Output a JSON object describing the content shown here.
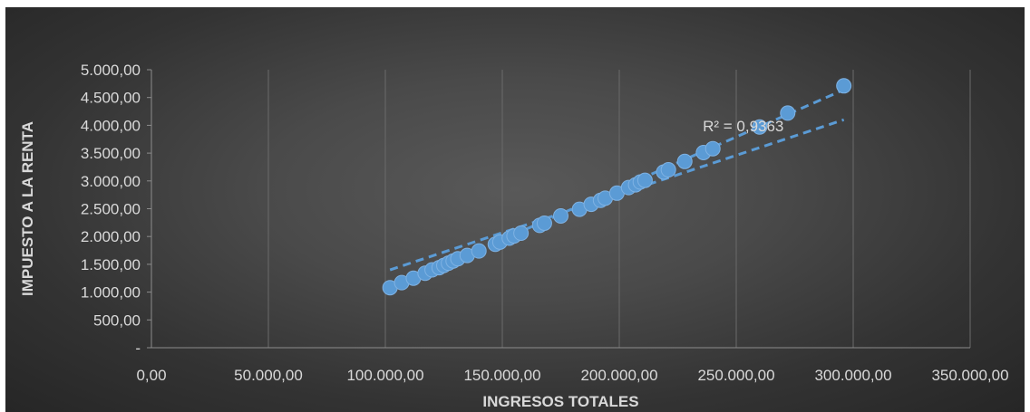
{
  "chart_data": {
    "type": "scatter",
    "title": "",
    "xlabel": "INGRESOS TOTALES",
    "ylabel": "IMPUESTO A LA RENTA",
    "xlim": [
      0,
      350000
    ],
    "ylim": [
      0,
      5000
    ],
    "x_ticks": [
      0,
      50000,
      100000,
      150000,
      200000,
      250000,
      300000,
      350000
    ],
    "x_tick_labels": [
      "0,00",
      "50.000,00",
      "100.000,00",
      "150.000,00",
      "200.000,00",
      "250.000,00",
      "300.000,00",
      "350.000,00"
    ],
    "y_ticks": [
      0,
      500,
      1000,
      1500,
      2000,
      2500,
      3000,
      3500,
      4000,
      4500,
      5000
    ],
    "y_tick_labels": [
      "-",
      "500,00",
      "1.000,00",
      "1.500,00",
      "2.000,00",
      "2.500,00",
      "3.000,00",
      "3.500,00",
      "4.000,00",
      "4.500,00",
      "5.000,00"
    ],
    "grid": "vertical",
    "marker_color": "#5b9bd5",
    "trendline_color": "#5b9bd5",
    "points": [
      {
        "x": 102000,
        "y": 1080
      },
      {
        "x": 107000,
        "y": 1170
      },
      {
        "x": 112000,
        "y": 1250
      },
      {
        "x": 117000,
        "y": 1340
      },
      {
        "x": 120000,
        "y": 1400
      },
      {
        "x": 123000,
        "y": 1440
      },
      {
        "x": 125000,
        "y": 1480
      },
      {
        "x": 127000,
        "y": 1520
      },
      {
        "x": 129000,
        "y": 1560
      },
      {
        "x": 131000,
        "y": 1600
      },
      {
        "x": 135000,
        "y": 1660
      },
      {
        "x": 140000,
        "y": 1740
      },
      {
        "x": 147000,
        "y": 1860
      },
      {
        "x": 149000,
        "y": 1900
      },
      {
        "x": 153000,
        "y": 1970
      },
      {
        "x": 155000,
        "y": 2010
      },
      {
        "x": 158000,
        "y": 2060
      },
      {
        "x": 166000,
        "y": 2200
      },
      {
        "x": 168000,
        "y": 2240
      },
      {
        "x": 175000,
        "y": 2370
      },
      {
        "x": 183000,
        "y": 2490
      },
      {
        "x": 188000,
        "y": 2580
      },
      {
        "x": 192000,
        "y": 2650
      },
      {
        "x": 194000,
        "y": 2690
      },
      {
        "x": 199000,
        "y": 2780
      },
      {
        "x": 204000,
        "y": 2880
      },
      {
        "x": 207000,
        "y": 2930
      },
      {
        "x": 209000,
        "y": 2980
      },
      {
        "x": 211000,
        "y": 3010
      },
      {
        "x": 219000,
        "y": 3160
      },
      {
        "x": 221000,
        "y": 3200
      },
      {
        "x": 228000,
        "y": 3350
      },
      {
        "x": 236000,
        "y": 3510
      },
      {
        "x": 240000,
        "y": 3580
      },
      {
        "x": 260000,
        "y": 3970
      },
      {
        "x": 272000,
        "y": 4220
      },
      {
        "x": 296000,
        "y": 4710
      }
    ],
    "trendlines": [
      {
        "x0": 102000,
        "y0": 1060,
        "x1": 296000,
        "y1": 4640
      },
      {
        "x0": 102000,
        "y0": 1400,
        "x1": 296000,
        "y1": 4100
      }
    ],
    "annotations": [
      {
        "text": "R² = 0,9363",
        "x": 253000,
        "y": 3990
      }
    ]
  }
}
